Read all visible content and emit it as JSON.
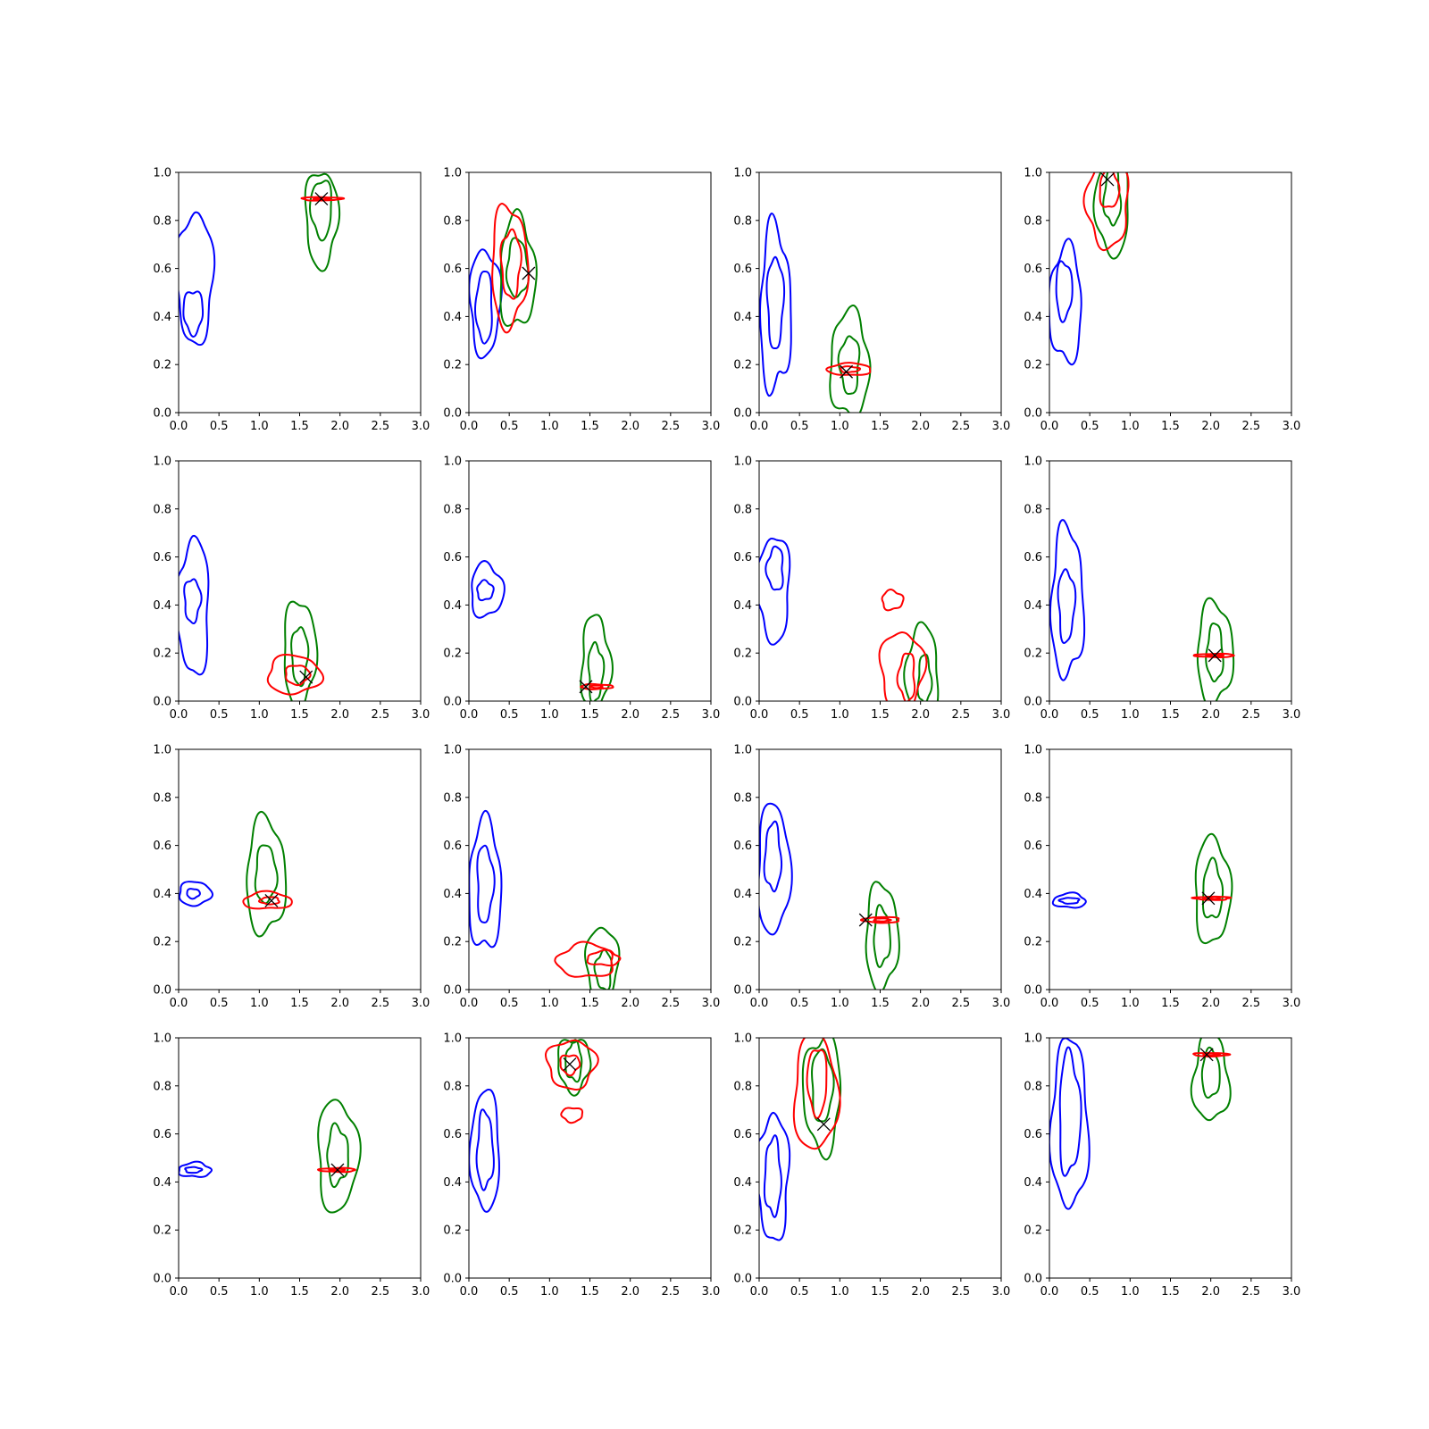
{
  "colors": {
    "blue": "#0000ff",
    "green": "#008000",
    "red": "#ff0000",
    "marker": "#000000"
  },
  "chart_data": {
    "type": "contour-grid",
    "rows": 4,
    "cols": 4,
    "xlim": [
      0,
      3
    ],
    "ylim": [
      0,
      1
    ],
    "xticks": [
      "0.0",
      "0.5",
      "1.0",
      "1.5",
      "2.0",
      "2.5",
      "3.0"
    ],
    "yticks": [
      "0.0",
      "0.2",
      "0.4",
      "0.6",
      "0.8",
      "1.0"
    ],
    "grid": false,
    "panels": [
      {
        "marker": [
          1.77,
          0.89
        ],
        "contours": [
          {
            "c": "blue",
            "cx": 0.2,
            "cy": 0.56,
            "rx": 0.23,
            "ry": 0.27
          },
          {
            "c": "blue",
            "cx": 0.18,
            "cy": 0.42,
            "rx": 0.12,
            "ry": 0.09
          },
          {
            "c": "green",
            "cx": 1.77,
            "cy": 0.81,
            "rx": 0.2,
            "ry": 0.2
          },
          {
            "c": "green",
            "cx": 1.77,
            "cy": 0.85,
            "rx": 0.13,
            "ry": 0.12
          },
          {
            "c": "red",
            "cx": 1.77,
            "cy": 0.89,
            "rx": 0.25,
            "ry": 0.007
          },
          {
            "c": "red",
            "cx": 1.77,
            "cy": 0.89,
            "rx": 0.1,
            "ry": 0.004
          }
        ]
      },
      {
        "marker": [
          0.74,
          0.58
        ],
        "contours": [
          {
            "c": "blue",
            "cx": 0.2,
            "cy": 0.46,
            "rx": 0.19,
            "ry": 0.22
          },
          {
            "c": "blue",
            "cx": 0.19,
            "cy": 0.44,
            "rx": 0.1,
            "ry": 0.15
          },
          {
            "c": "green",
            "cx": 0.6,
            "cy": 0.58,
            "rx": 0.22,
            "ry": 0.23
          },
          {
            "c": "green",
            "cx": 0.6,
            "cy": 0.6,
            "rx": 0.13,
            "ry": 0.12
          },
          {
            "c": "red",
            "cx": 0.5,
            "cy": 0.61,
            "rx": 0.22,
            "ry": 0.25
          },
          {
            "c": "red",
            "cx": 0.52,
            "cy": 0.62,
            "rx": 0.12,
            "ry": 0.14
          }
        ]
      },
      {
        "marker": [
          1.08,
          0.17
        ],
        "contours": [
          {
            "c": "blue",
            "cx": 0.2,
            "cy": 0.43,
            "rx": 0.19,
            "ry": 0.34
          },
          {
            "c": "blue",
            "cx": 0.2,
            "cy": 0.46,
            "rx": 0.1,
            "ry": 0.19
          },
          {
            "c": "green",
            "cx": 1.12,
            "cy": 0.2,
            "rx": 0.24,
            "ry": 0.22
          },
          {
            "c": "green",
            "cx": 1.12,
            "cy": 0.2,
            "rx": 0.12,
            "ry": 0.12
          },
          {
            "c": "red",
            "cx": 1.12,
            "cy": 0.18,
            "rx": 0.27,
            "ry": 0.025
          },
          {
            "c": "red",
            "cx": 1.12,
            "cy": 0.18,
            "rx": 0.12,
            "ry": 0.012
          }
        ]
      },
      {
        "marker": [
          0.72,
          0.97
        ],
        "contours": [
          {
            "c": "blue",
            "cx": 0.2,
            "cy": 0.45,
            "rx": 0.2,
            "ry": 0.24
          },
          {
            "c": "blue",
            "cx": 0.18,
            "cy": 0.51,
            "rx": 0.1,
            "ry": 0.12
          },
          {
            "c": "green",
            "cx": 0.78,
            "cy": 0.86,
            "rx": 0.21,
            "ry": 0.2
          },
          {
            "c": "green",
            "cx": 0.78,
            "cy": 0.9,
            "rx": 0.1,
            "ry": 0.12
          },
          {
            "c": "red",
            "cx": 0.72,
            "cy": 0.87,
            "rx": 0.26,
            "ry": 0.18
          },
          {
            "c": "red",
            "cx": 0.74,
            "cy": 0.93,
            "rx": 0.12,
            "ry": 0.08
          }
        ]
      },
      {
        "marker": [
          1.58,
          0.1
        ],
        "contours": [
          {
            "c": "blue",
            "cx": 0.18,
            "cy": 0.39,
            "rx": 0.2,
            "ry": 0.28
          },
          {
            "c": "blue",
            "cx": 0.17,
            "cy": 0.42,
            "rx": 0.1,
            "ry": 0.09
          },
          {
            "c": "green",
            "cx": 1.5,
            "cy": 0.2,
            "rx": 0.2,
            "ry": 0.22
          },
          {
            "c": "green",
            "cx": 1.5,
            "cy": 0.19,
            "rx": 0.1,
            "ry": 0.12
          },
          {
            "c": "red",
            "cx": 1.43,
            "cy": 0.11,
            "rx": 0.33,
            "ry": 0.08
          },
          {
            "c": "red",
            "cx": 1.47,
            "cy": 0.11,
            "rx": 0.15,
            "ry": 0.04
          }
        ]
      },
      {
        "marker": [
          1.45,
          0.06
        ],
        "contours": [
          {
            "c": "blue",
            "cx": 0.22,
            "cy": 0.46,
            "rx": 0.2,
            "ry": 0.11
          },
          {
            "c": "blue",
            "cx": 0.2,
            "cy": 0.46,
            "rx": 0.1,
            "ry": 0.04
          },
          {
            "c": "green",
            "cx": 1.57,
            "cy": 0.16,
            "rx": 0.18,
            "ry": 0.19
          },
          {
            "c": "green",
            "cx": 1.57,
            "cy": 0.12,
            "rx": 0.09,
            "ry": 0.12
          },
          {
            "c": "red",
            "cx": 1.58,
            "cy": 0.06,
            "rx": 0.2,
            "ry": 0.01
          },
          {
            "c": "red",
            "cx": 1.58,
            "cy": 0.06,
            "rx": 0.08,
            "ry": 0.005
          }
        ]
      },
      {
        "marker": null,
        "contours": [
          {
            "c": "blue",
            "cx": 0.18,
            "cy": 0.47,
            "rx": 0.2,
            "ry": 0.22
          },
          {
            "c": "blue",
            "cx": 0.2,
            "cy": 0.55,
            "rx": 0.1,
            "ry": 0.09
          },
          {
            "c": "green",
            "cx": 2.02,
            "cy": 0.12,
            "rx": 0.2,
            "ry": 0.19
          },
          {
            "c": "green",
            "cx": 2.05,
            "cy": 0.09,
            "rx": 0.08,
            "ry": 0.1
          },
          {
            "c": "red",
            "cx": 1.77,
            "cy": 0.13,
            "rx": 0.27,
            "ry": 0.16
          },
          {
            "c": "red",
            "cx": 1.83,
            "cy": 0.1,
            "rx": 0.1,
            "ry": 0.1
          },
          {
            "c": "red",
            "cx": 1.65,
            "cy": 0.42,
            "rx": 0.13,
            "ry": 0.04
          }
        ]
      },
      {
        "marker": [
          2.05,
          0.19
        ],
        "contours": [
          {
            "c": "blue",
            "cx": 0.22,
            "cy": 0.41,
            "rx": 0.2,
            "ry": 0.31
          },
          {
            "c": "blue",
            "cx": 0.21,
            "cy": 0.4,
            "rx": 0.1,
            "ry": 0.15
          },
          {
            "c": "green",
            "cx": 2.05,
            "cy": 0.2,
            "rx": 0.22,
            "ry": 0.21
          },
          {
            "c": "green",
            "cx": 2.05,
            "cy": 0.2,
            "rx": 0.1,
            "ry": 0.12
          },
          {
            "c": "red",
            "cx": 2.05,
            "cy": 0.19,
            "rx": 0.25,
            "ry": 0.007
          },
          {
            "c": "red",
            "cx": 2.05,
            "cy": 0.19,
            "rx": 0.1,
            "ry": 0.004
          }
        ]
      },
      {
        "marker": [
          1.15,
          0.37
        ],
        "contours": [
          {
            "c": "blue",
            "cx": 0.2,
            "cy": 0.4,
            "rx": 0.2,
            "ry": 0.05
          },
          {
            "c": "blue",
            "cx": 0.18,
            "cy": 0.4,
            "rx": 0.08,
            "ry": 0.02
          },
          {
            "c": "green",
            "cx": 1.08,
            "cy": 0.47,
            "rx": 0.24,
            "ry": 0.24
          },
          {
            "c": "green",
            "cx": 1.08,
            "cy": 0.48,
            "rx": 0.13,
            "ry": 0.12
          },
          {
            "c": "red",
            "cx": 1.1,
            "cy": 0.37,
            "rx": 0.3,
            "ry": 0.035
          },
          {
            "c": "red",
            "cx": 1.13,
            "cy": 0.37,
            "rx": 0.12,
            "ry": 0.015
          }
        ]
      },
      {
        "marker": null,
        "contours": [
          {
            "c": "blue",
            "cx": 0.2,
            "cy": 0.43,
            "rx": 0.2,
            "ry": 0.27
          },
          {
            "c": "blue",
            "cx": 0.2,
            "cy": 0.44,
            "rx": 0.1,
            "ry": 0.16
          },
          {
            "c": "green",
            "cx": 1.65,
            "cy": 0.11,
            "rx": 0.2,
            "ry": 0.15
          },
          {
            "c": "green",
            "cx": 1.67,
            "cy": 0.08,
            "rx": 0.1,
            "ry": 0.08
          },
          {
            "c": "red",
            "cx": 1.45,
            "cy": 0.12,
            "rx": 0.35,
            "ry": 0.07
          },
          {
            "c": "red",
            "cx": 1.67,
            "cy": 0.13,
            "rx": 0.2,
            "ry": 0.03
          }
        ]
      },
      {
        "marker": [
          1.32,
          0.29
        ],
        "contours": [
          {
            "c": "blue",
            "cx": 0.18,
            "cy": 0.5,
            "rx": 0.2,
            "ry": 0.27
          },
          {
            "c": "blue",
            "cx": 0.17,
            "cy": 0.55,
            "rx": 0.1,
            "ry": 0.14
          },
          {
            "c": "green",
            "cx": 1.52,
            "cy": 0.22,
            "rx": 0.2,
            "ry": 0.22
          },
          {
            "c": "green",
            "cx": 1.52,
            "cy": 0.22,
            "rx": 0.1,
            "ry": 0.12
          },
          {
            "c": "red",
            "cx": 1.52,
            "cy": 0.29,
            "rx": 0.23,
            "ry": 0.012
          },
          {
            "c": "red",
            "cx": 1.52,
            "cy": 0.29,
            "rx": 0.1,
            "ry": 0.006
          }
        ]
      },
      {
        "marker": [
          1.97,
          0.38
        ],
        "contours": [
          {
            "c": "blue",
            "cx": 0.25,
            "cy": 0.37,
            "rx": 0.2,
            "ry": 0.03
          },
          {
            "c": "blue",
            "cx": 0.25,
            "cy": 0.37,
            "rx": 0.12,
            "ry": 0.012
          },
          {
            "c": "green",
            "cx": 2.02,
            "cy": 0.41,
            "rx": 0.22,
            "ry": 0.22
          },
          {
            "c": "green",
            "cx": 2.02,
            "cy": 0.41,
            "rx": 0.12,
            "ry": 0.12
          },
          {
            "c": "red",
            "cx": 2.02,
            "cy": 0.38,
            "rx": 0.22,
            "ry": 0.007
          },
          {
            "c": "red",
            "cx": 2.02,
            "cy": 0.38,
            "rx": 0.1,
            "ry": 0.004
          }
        ]
      },
      {
        "marker": [
          1.97,
          0.45
        ],
        "contours": [
          {
            "c": "blue",
            "cx": 0.2,
            "cy": 0.45,
            "rx": 0.2,
            "ry": 0.03
          },
          {
            "c": "blue",
            "cx": 0.18,
            "cy": 0.45,
            "rx": 0.1,
            "ry": 0.012
          },
          {
            "c": "green",
            "cx": 1.97,
            "cy": 0.51,
            "rx": 0.25,
            "ry": 0.23
          },
          {
            "c": "green",
            "cx": 1.97,
            "cy": 0.51,
            "rx": 0.13,
            "ry": 0.12
          },
          {
            "c": "red",
            "cx": 1.97,
            "cy": 0.45,
            "rx": 0.23,
            "ry": 0.008
          },
          {
            "c": "red",
            "cx": 1.97,
            "cy": 0.45,
            "rx": 0.1,
            "ry": 0.004
          }
        ]
      },
      {
        "marker": [
          1.25,
          0.89
        ],
        "contours": [
          {
            "c": "blue",
            "cx": 0.2,
            "cy": 0.53,
            "rx": 0.18,
            "ry": 0.25
          },
          {
            "c": "blue",
            "cx": 0.2,
            "cy": 0.53,
            "rx": 0.1,
            "ry": 0.16
          },
          {
            "c": "green",
            "cx": 1.3,
            "cy": 0.89,
            "rx": 0.2,
            "ry": 0.11
          },
          {
            "c": "green",
            "cx": 1.3,
            "cy": 0.9,
            "rx": 0.1,
            "ry": 0.08
          },
          {
            "c": "red",
            "cx": 1.27,
            "cy": 0.89,
            "rx": 0.3,
            "ry": 0.1
          },
          {
            "c": "red",
            "cx": 1.25,
            "cy": 0.89,
            "rx": 0.12,
            "ry": 0.04
          },
          {
            "c": "red",
            "cx": 1.28,
            "cy": 0.68,
            "rx": 0.13,
            "ry": 0.03
          }
        ]
      },
      {
        "marker": [
          0.8,
          0.64
        ],
        "contours": [
          {
            "c": "blue",
            "cx": 0.17,
            "cy": 0.42,
            "rx": 0.2,
            "ry": 0.26
          },
          {
            "c": "blue",
            "cx": 0.17,
            "cy": 0.42,
            "rx": 0.1,
            "ry": 0.16
          },
          {
            "c": "green",
            "cx": 0.78,
            "cy": 0.77,
            "rx": 0.23,
            "ry": 0.24
          },
          {
            "c": "green",
            "cx": 0.78,
            "cy": 0.8,
            "rx": 0.13,
            "ry": 0.15
          },
          {
            "c": "red",
            "cx": 0.7,
            "cy": 0.77,
            "rx": 0.27,
            "ry": 0.24
          },
          {
            "c": "red",
            "cx": 0.72,
            "cy": 0.82,
            "rx": 0.12,
            "ry": 0.14
          }
        ]
      },
      {
        "marker": [
          1.95,
          0.93
        ],
        "contours": [
          {
            "c": "blue",
            "cx": 0.25,
            "cy": 0.64,
            "rx": 0.23,
            "ry": 0.35
          },
          {
            "c": "blue",
            "cx": 0.25,
            "cy": 0.68,
            "rx": 0.13,
            "ry": 0.25
          },
          {
            "c": "green",
            "cx": 2.0,
            "cy": 0.83,
            "rx": 0.22,
            "ry": 0.18
          },
          {
            "c": "green",
            "cx": 2.0,
            "cy": 0.85,
            "rx": 0.11,
            "ry": 0.1
          },
          {
            "c": "red",
            "cx": 2.0,
            "cy": 0.93,
            "rx": 0.22,
            "ry": 0.007
          },
          {
            "c": "red",
            "cx": 2.0,
            "cy": 0.93,
            "rx": 0.1,
            "ry": 0.004
          }
        ]
      }
    ]
  }
}
